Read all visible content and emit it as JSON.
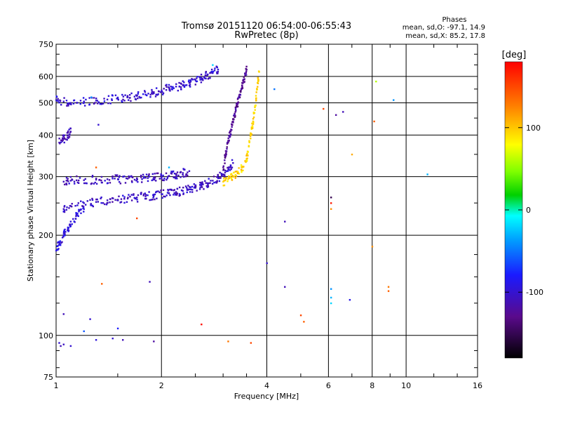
{
  "chart_data": {
    "type": "scatter",
    "title": "Tromsø 20151120 06:54:00-06:55:43",
    "subtitle": "RwPretec (8p)",
    "xlabel": "Frequency [MHz]",
    "ylabel": "Stationary phase Virtual Height [km]",
    "x_scale": "log",
    "y_scale": "log",
    "xlim": [
      1,
      16
    ],
    "ylim": [
      75,
      750
    ],
    "x_ticks": [
      1,
      2,
      4,
      6,
      8,
      10,
      16
    ],
    "y_ticks": [
      75,
      100,
      200,
      300,
      400,
      500,
      600,
      750
    ],
    "grid": true,
    "stats": {
      "heading": "Phases",
      "o_mode": "mean, sd,O: -97.1, 14.9",
      "x_mode": "mean, sd,X: 85.2, 17.8"
    },
    "colorbar": {
      "label": "[deg]",
      "range": [
        -180,
        180
      ],
      "ticks": [
        100,
        0,
        -100
      ]
    },
    "traces": [
      {
        "x": [
          1.0,
          1.05,
          1.1,
          1.2,
          1.3,
          1.4,
          1.5,
          1.6,
          1.7,
          1.8,
          1.9,
          2.0,
          2.1,
          2.2,
          2.3,
          2.4,
          2.5,
          2.6,
          2.7,
          2.8,
          2.9
        ],
        "y": [
          510,
          505,
          500,
          505,
          508,
          512,
          515,
          520,
          525,
          530,
          535,
          545,
          555,
          560,
          565,
          575,
          585,
          595,
          605,
          615,
          630
        ],
        "phase": -100
      },
      {
        "x": [
          1.05,
          1.1,
          1.2,
          1.3,
          1.4,
          1.5,
          1.6,
          1.7,
          1.8,
          1.9,
          2.0,
          2.1,
          2.2,
          2.3,
          2.4,
          2.5,
          2.6,
          2.7,
          2.8,
          2.9,
          3.0,
          3.1,
          3.2
        ],
        "y": [
          240,
          245,
          250,
          252,
          255,
          256,
          258,
          260,
          262,
          264,
          266,
          268,
          270,
          272,
          275,
          278,
          282,
          287,
          292,
          298,
          305,
          315,
          330
        ],
        "phase": -105
      },
      {
        "x": [
          1.05,
          1.1,
          1.2,
          1.3,
          1.4,
          1.5,
          1.6,
          1.7,
          1.8,
          1.9,
          2.0,
          2.1,
          2.2,
          2.3,
          2.4
        ],
        "y": [
          290,
          292,
          293,
          294,
          295,
          295,
          296,
          297,
          298,
          299,
          300,
          302,
          305,
          308,
          312
        ],
        "phase": -108
      },
      {
        "x": [
          1.0,
          1.02,
          1.05,
          1.08,
          1.1,
          1.15,
          1.2
        ],
        "y": [
          180,
          190,
          200,
          210,
          220,
          230,
          240
        ],
        "phase": -95
      },
      {
        "x": [
          1.02,
          1.05,
          1.08,
          1.1
        ],
        "y": [
          380,
          390,
          400,
          410
        ],
        "phase": -110
      },
      {
        "x": [
          3.0,
          3.05,
          3.1,
          3.15,
          3.2,
          3.25,
          3.3,
          3.35,
          3.4,
          3.45,
          3.5
        ],
        "y": [
          320,
          350,
          380,
          410,
          440,
          470,
          500,
          530,
          560,
          590,
          630
        ],
        "phase": -125
      },
      {
        "x": [
          3.0,
          3.1,
          3.2,
          3.3,
          3.4,
          3.5,
          3.55,
          3.6,
          3.65,
          3.7,
          3.75,
          3.8
        ],
        "y": [
          290,
          295,
          300,
          310,
          320,
          340,
          370,
          400,
          440,
          490,
          550,
          620
        ],
        "phase": 95
      }
    ],
    "scatter_points": [
      {
        "x": 1.32,
        "y": 430,
        "phase": -100
      },
      {
        "x": 1.26,
        "y": 520,
        "phase": -40
      },
      {
        "x": 2.8,
        "y": 650,
        "phase": -20
      },
      {
        "x": 4.2,
        "y": 550,
        "phase": -50
      },
      {
        "x": 5.8,
        "y": 480,
        "phase": 150
      },
      {
        "x": 6.3,
        "y": 460,
        "phase": -120
      },
      {
        "x": 6.6,
        "y": 470,
        "phase": -110
      },
      {
        "x": 7.0,
        "y": 350,
        "phase": 110
      },
      {
        "x": 8.1,
        "y": 440,
        "phase": 140
      },
      {
        "x": 8.2,
        "y": 580,
        "phase": 60
      },
      {
        "x": 9.2,
        "y": 510,
        "phase": -40
      },
      {
        "x": 11.5,
        "y": 305,
        "phase": -30
      },
      {
        "x": 6.1,
        "y": 260,
        "phase": -150
      },
      {
        "x": 6.1,
        "y": 250,
        "phase": 170
      },
      {
        "x": 6.1,
        "y": 240,
        "phase": 120
      },
      {
        "x": 4.5,
        "y": 220,
        "phase": -110
      },
      {
        "x": 4.0,
        "y": 165,
        "phase": -100
      },
      {
        "x": 4.5,
        "y": 140,
        "phase": -110
      },
      {
        "x": 6.1,
        "y": 138,
        "phase": -40
      },
      {
        "x": 6.1,
        "y": 130,
        "phase": -30
      },
      {
        "x": 6.1,
        "y": 125,
        "phase": -20
      },
      {
        "x": 6.9,
        "y": 128,
        "phase": -90
      },
      {
        "x": 8.0,
        "y": 185,
        "phase": 120
      },
      {
        "x": 8.9,
        "y": 140,
        "phase": 130
      },
      {
        "x": 8.9,
        "y": 136,
        "phase": 140
      },
      {
        "x": 5.0,
        "y": 115,
        "phase": 150
      },
      {
        "x": 5.1,
        "y": 110,
        "phase": 140
      },
      {
        "x": 1.85,
        "y": 145,
        "phase": -110
      },
      {
        "x": 1.35,
        "y": 143,
        "phase": 140
      },
      {
        "x": 1.05,
        "y": 116,
        "phase": -110
      },
      {
        "x": 1.25,
        "y": 112,
        "phase": -100
      },
      {
        "x": 1.5,
        "y": 105,
        "phase": -80
      },
      {
        "x": 1.2,
        "y": 103,
        "phase": -60
      },
      {
        "x": 2.6,
        "y": 108,
        "phase": 175
      },
      {
        "x": 1.02,
        "y": 95,
        "phase": -100
      },
      {
        "x": 1.03,
        "y": 93,
        "phase": -110
      },
      {
        "x": 1.05,
        "y": 94,
        "phase": -105
      },
      {
        "x": 1.1,
        "y": 93,
        "phase": -100
      },
      {
        "x": 1.3,
        "y": 97,
        "phase": -95
      },
      {
        "x": 1.45,
        "y": 98,
        "phase": -100
      },
      {
        "x": 1.55,
        "y": 97,
        "phase": -110
      },
      {
        "x": 1.9,
        "y": 96,
        "phase": -120
      },
      {
        "x": 3.1,
        "y": 96,
        "phase": 130
      },
      {
        "x": 3.6,
        "y": 95,
        "phase": 150
      },
      {
        "x": 1.7,
        "y": 225,
        "phase": 150
      },
      {
        "x": 1.3,
        "y": 320,
        "phase": 140
      },
      {
        "x": 2.1,
        "y": 320,
        "phase": -30
      }
    ]
  },
  "colors": {
    "axis": "#000000",
    "grid": "#000000",
    "background": "#ffffff"
  }
}
